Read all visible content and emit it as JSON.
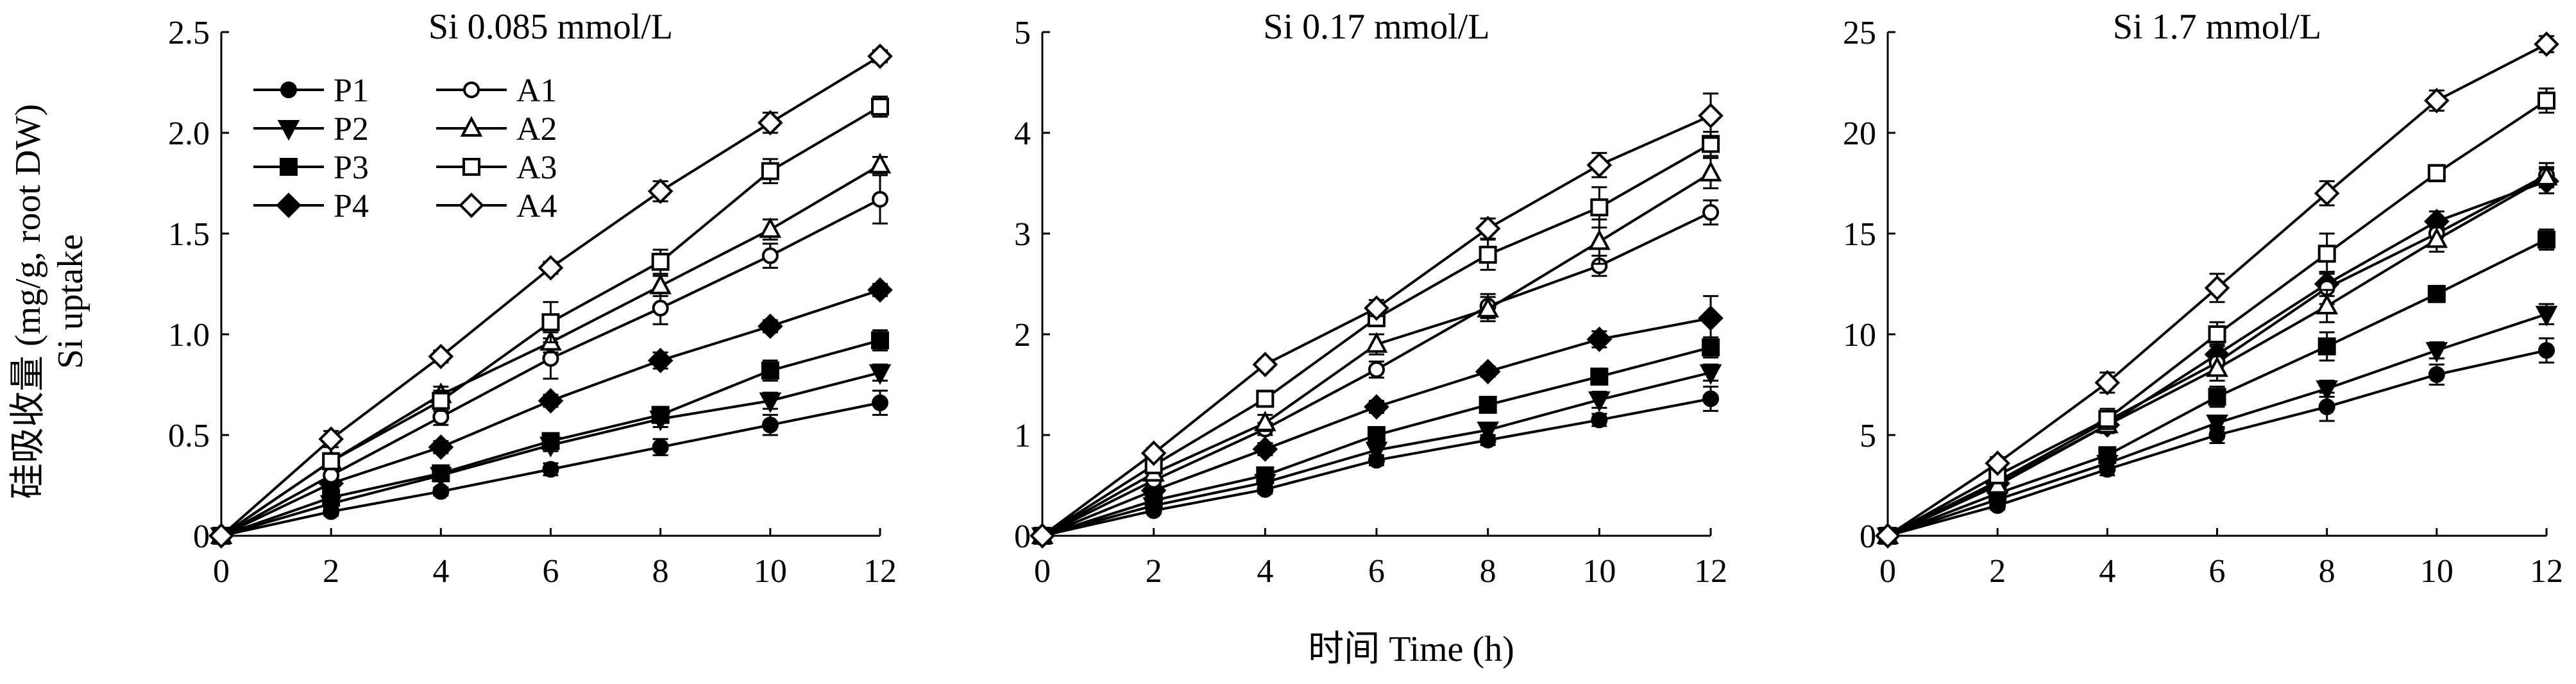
{
  "figure": {
    "ylabel_cn": "硅吸收量 (mg/g, root DW)",
    "ylabel_en": "Si uptake",
    "xlabel": "时间 Time (h)"
  },
  "legend": [
    {
      "name": "P1",
      "marker": "circle",
      "fill": "filled"
    },
    {
      "name": "A1",
      "marker": "circle",
      "fill": "open"
    },
    {
      "name": "P2",
      "marker": "triangle-down",
      "fill": "filled"
    },
    {
      "name": "A2",
      "marker": "triangle-up",
      "fill": "open"
    },
    {
      "name": "P3",
      "marker": "square",
      "fill": "filled"
    },
    {
      "name": "A3",
      "marker": "square",
      "fill": "open"
    },
    {
      "name": "P4",
      "marker": "diamond",
      "fill": "filled"
    },
    {
      "name": "A4",
      "marker": "diamond",
      "fill": "open"
    }
  ],
  "chart_data": [
    {
      "type": "line",
      "title": "Si 0.085 mmol/L",
      "x": [
        0,
        2,
        4,
        6,
        8,
        10,
        12
      ],
      "xticks": [
        "0",
        "2",
        "4",
        "6",
        "8",
        "10",
        "12"
      ],
      "xlim": [
        0,
        12
      ],
      "ylim": [
        0,
        2.5
      ],
      "yticks": [
        0,
        0.5,
        1.0,
        1.5,
        2.0,
        2.5
      ],
      "ytick_labels": [
        "0",
        "0.5",
        "1.0",
        "1.5",
        "2.0",
        "2.5"
      ],
      "grid": false,
      "legend_position": "top-left",
      "series": [
        {
          "name": "P1",
          "marker": "circle",
          "fill": "filled",
          "values": [
            0,
            0.12,
            0.22,
            0.33,
            0.44,
            0.55,
            0.66
          ],
          "errors": [
            0,
            0.02,
            0.02,
            0.03,
            0.04,
            0.05,
            0.06
          ]
        },
        {
          "name": "P2",
          "marker": "triangle-down",
          "fill": "filled",
          "values": [
            0,
            0.16,
            0.3,
            0.45,
            0.58,
            0.67,
            0.81
          ],
          "errors": [
            0,
            0.02,
            0.02,
            0.03,
            0.04,
            0.04,
            0.04
          ]
        },
        {
          "name": "P3",
          "marker": "square",
          "fill": "filled",
          "values": [
            0,
            0.19,
            0.31,
            0.47,
            0.6,
            0.82,
            0.97
          ],
          "errors": [
            0,
            0.02,
            0.03,
            0.03,
            0.04,
            0.05,
            0.05
          ]
        },
        {
          "name": "P4",
          "marker": "diamond",
          "fill": "filled",
          "values": [
            0,
            0.26,
            0.44,
            0.67,
            0.87,
            1.04,
            1.22
          ],
          "errors": [
            0,
            0.02,
            0.03,
            0.03,
            0.04,
            0.03,
            0.03
          ]
        },
        {
          "name": "A1",
          "marker": "circle",
          "fill": "open",
          "values": [
            0,
            0.3,
            0.59,
            0.88,
            1.13,
            1.39,
            1.67
          ],
          "errors": [
            0,
            0.03,
            0.04,
            0.1,
            0.08,
            0.06,
            0.12
          ]
        },
        {
          "name": "A2",
          "marker": "triangle-up",
          "fill": "open",
          "values": [
            0,
            0.37,
            0.7,
            0.96,
            1.24,
            1.52,
            1.84
          ],
          "errors": [
            0,
            0.03,
            0.04,
            0.05,
            0.05,
            0.05,
            0.04
          ]
        },
        {
          "name": "A3",
          "marker": "square",
          "fill": "open",
          "values": [
            0,
            0.37,
            0.67,
            1.06,
            1.36,
            1.81,
            2.13
          ],
          "errors": [
            0,
            0.04,
            0.05,
            0.1,
            0.06,
            0.06,
            0.05
          ]
        },
        {
          "name": "A4",
          "marker": "diamond",
          "fill": "open",
          "values": [
            0,
            0.48,
            0.89,
            1.33,
            1.71,
            2.05,
            2.38
          ],
          "errors": [
            0,
            0.04,
            0.03,
            0.03,
            0.05,
            0.05,
            0.03
          ]
        }
      ]
    },
    {
      "type": "line",
      "title": "Si 0.17 mmol/L",
      "x": [
        0,
        2,
        4,
        6,
        8,
        10,
        12
      ],
      "xticks": [
        "0",
        "2",
        "4",
        "6",
        "8",
        "10",
        "12"
      ],
      "xlim": [
        0,
        12
      ],
      "ylim": [
        0,
        5
      ],
      "yticks": [
        0,
        1,
        2,
        3,
        4,
        5
      ],
      "ytick_labels": [
        "0",
        "1",
        "2",
        "3",
        "4",
        "5"
      ],
      "grid": false,
      "series": [
        {
          "name": "P1",
          "marker": "circle",
          "fill": "filled",
          "values": [
            0,
            0.25,
            0.46,
            0.75,
            0.95,
            1.15,
            1.36
          ],
          "errors": [
            0,
            0.03,
            0.04,
            0.05,
            0.05,
            0.06,
            0.12
          ]
        },
        {
          "name": "P2",
          "marker": "triangle-down",
          "fill": "filled",
          "values": [
            0,
            0.3,
            0.53,
            0.85,
            1.05,
            1.35,
            1.62
          ],
          "errors": [
            0,
            0.03,
            0.04,
            0.05,
            0.05,
            0.08,
            0.08
          ]
        },
        {
          "name": "P3",
          "marker": "square",
          "fill": "filled",
          "values": [
            0,
            0.35,
            0.6,
            1.0,
            1.3,
            1.58,
            1.87
          ],
          "errors": [
            0,
            0.04,
            0.05,
            0.06,
            0.06,
            0.08,
            0.1
          ]
        },
        {
          "name": "P4",
          "marker": "diamond",
          "fill": "filled",
          "values": [
            0,
            0.45,
            0.86,
            1.28,
            1.63,
            1.95,
            2.16
          ],
          "errors": [
            0,
            0.05,
            0.06,
            0.06,
            0.05,
            0.08,
            0.22
          ]
        },
        {
          "name": "A1",
          "marker": "circle",
          "fill": "open",
          "values": [
            0,
            0.55,
            1.06,
            1.65,
            2.28,
            2.68,
            3.21
          ],
          "errors": [
            0,
            0.05,
            0.06,
            0.08,
            0.12,
            0.1,
            0.12
          ]
        },
        {
          "name": "A2",
          "marker": "triangle-up",
          "fill": "open",
          "values": [
            0,
            0.62,
            1.12,
            1.9,
            2.25,
            2.92,
            3.6
          ],
          "errors": [
            0,
            0.05,
            0.08,
            0.1,
            0.12,
            0.22,
            0.15
          ]
        },
        {
          "name": "A3",
          "marker": "square",
          "fill": "open",
          "values": [
            0,
            0.7,
            1.36,
            2.16,
            2.79,
            3.26,
            3.89
          ],
          "errors": [
            0,
            0.05,
            0.08,
            0.08,
            0.15,
            0.2,
            0.12
          ]
        },
        {
          "name": "A4",
          "marker": "diamond",
          "fill": "open",
          "values": [
            0,
            0.82,
            1.7,
            2.26,
            3.05,
            3.68,
            4.17
          ],
          "errors": [
            0,
            0.05,
            0.05,
            0.08,
            0.1,
            0.12,
            0.22
          ]
        }
      ]
    },
    {
      "type": "line",
      "title": "Si 1.7 mmol/L",
      "x": [
        0,
        2,
        4,
        6,
        8,
        10,
        12
      ],
      "xticks": [
        "0",
        "2",
        "4",
        "6",
        "8",
        "10",
        "12"
      ],
      "xlim": [
        0,
        12
      ],
      "ylim": [
        0,
        25
      ],
      "yticks": [
        0,
        5,
        10,
        15,
        20,
        25
      ],
      "ytick_labels": [
        "0",
        "5",
        "10",
        "15",
        "20",
        "25"
      ],
      "grid": false,
      "series": [
        {
          "name": "P1",
          "marker": "circle",
          "fill": "filled",
          "values": [
            0,
            1.5,
            3.3,
            5.0,
            6.4,
            8.0,
            9.2
          ],
          "errors": [
            0,
            0.2,
            0.3,
            0.4,
            0.7,
            0.5,
            0.6
          ]
        },
        {
          "name": "P2",
          "marker": "triangle-down",
          "fill": "filled",
          "values": [
            0,
            1.8,
            3.6,
            5.6,
            7.3,
            9.2,
            11.0
          ],
          "errors": [
            0,
            0.2,
            0.3,
            0.3,
            0.4,
            0.4,
            0.5
          ]
        },
        {
          "name": "P3",
          "marker": "square",
          "fill": "filled",
          "values": [
            0,
            2.1,
            4.0,
            6.9,
            9.4,
            12.0,
            14.7
          ],
          "errors": [
            0,
            0.2,
            0.3,
            0.5,
            0.7,
            0.4,
            0.5
          ]
        },
        {
          "name": "P4",
          "marker": "diamond",
          "fill": "filled",
          "values": [
            0,
            2.6,
            5.5,
            9.0,
            12.5,
            15.6,
            17.6
          ],
          "errors": [
            0,
            0.3,
            0.4,
            0.5,
            0.6,
            0.5,
            0.6
          ]
        },
        {
          "name": "A1",
          "marker": "circle",
          "fill": "open",
          "values": [
            0,
            2.7,
            5.7,
            8.6,
            12.3,
            15.0,
            17.9
          ],
          "errors": [
            0,
            0.3,
            0.4,
            0.5,
            0.8,
            0.5,
            0.6
          ]
        },
        {
          "name": "A2",
          "marker": "triangle-up",
          "fill": "open",
          "values": [
            0,
            2.5,
            5.5,
            8.3,
            11.4,
            14.7,
            17.8
          ],
          "errors": [
            0,
            0.3,
            0.4,
            0.6,
            0.8,
            0.6,
            0.5
          ]
        },
        {
          "name": "A3",
          "marker": "square",
          "fill": "open",
          "values": [
            0,
            3.0,
            5.8,
            10.0,
            14.0,
            18.0,
            21.6
          ],
          "errors": [
            0,
            0.3,
            0.5,
            0.6,
            1.0,
            0.4,
            0.6
          ]
        },
        {
          "name": "A4",
          "marker": "diamond",
          "fill": "open",
          "values": [
            0,
            3.6,
            7.6,
            12.3,
            17.0,
            21.6,
            24.4
          ],
          "errors": [
            0,
            0.3,
            0.5,
            0.7,
            0.6,
            0.5,
            0.4
          ]
        }
      ]
    }
  ]
}
